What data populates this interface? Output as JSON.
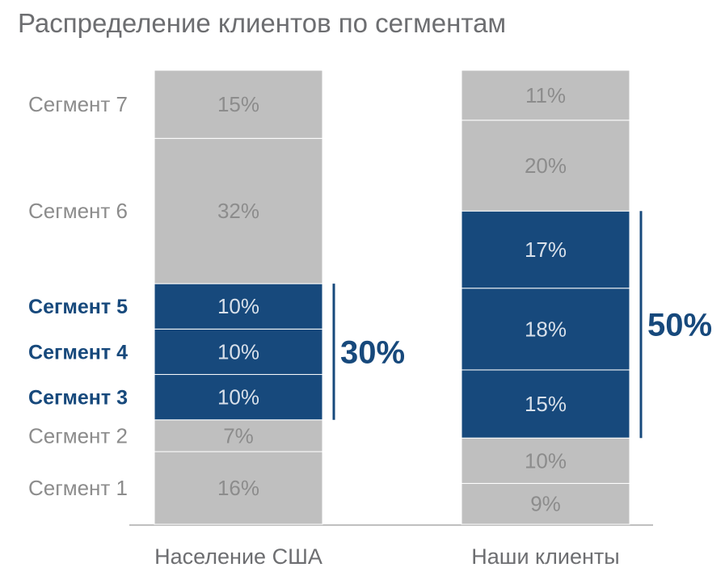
{
  "title": "Распределение клиентов по сегментам",
  "chart_data": {
    "type": "bar",
    "stacked": true,
    "normalized": true,
    "categories": [
      "Население США",
      "Наши клиенты"
    ],
    "segments": [
      "Сегмент 1",
      "Сегмент 2",
      "Сегмент 3",
      "Сегмент 4",
      "Сегмент 5",
      "Сегмент 6",
      "Сегмент 7"
    ],
    "highlighted_segments": [
      "Сегмент 3",
      "Сегмент 4",
      "Сегмент 5"
    ],
    "series": [
      {
        "name": "Сегмент 1",
        "values": [
          16,
          9
        ]
      },
      {
        "name": "Сегмент 2",
        "values": [
          7,
          10
        ]
      },
      {
        "name": "Сегмент 3",
        "values": [
          10,
          15
        ]
      },
      {
        "name": "Сегмент 4",
        "values": [
          10,
          18
        ]
      },
      {
        "name": "Сегмент 5",
        "values": [
          10,
          17
        ]
      },
      {
        "name": "Сегмент 6",
        "values": [
          32,
          20
        ]
      },
      {
        "name": "Сегмент 7",
        "values": [
          15,
          11
        ]
      }
    ],
    "value_labels": [
      [
        "16%",
        "7%",
        "10%",
        "10%",
        "10%",
        "32%",
        "15%"
      ],
      [
        "9%",
        "10%",
        "15%",
        "18%",
        "17%",
        "20%",
        "11%"
      ]
    ],
    "bracket_totals": [
      "30%",
      "50%"
    ],
    "colors": {
      "highlight": "#17497c",
      "muted": "#bfbfbf",
      "muted_text": "#8c8c8c",
      "highlight_text": "#d8e0ea",
      "axis_line": "#bfbfbf",
      "category_text": "#6d6e71"
    }
  }
}
